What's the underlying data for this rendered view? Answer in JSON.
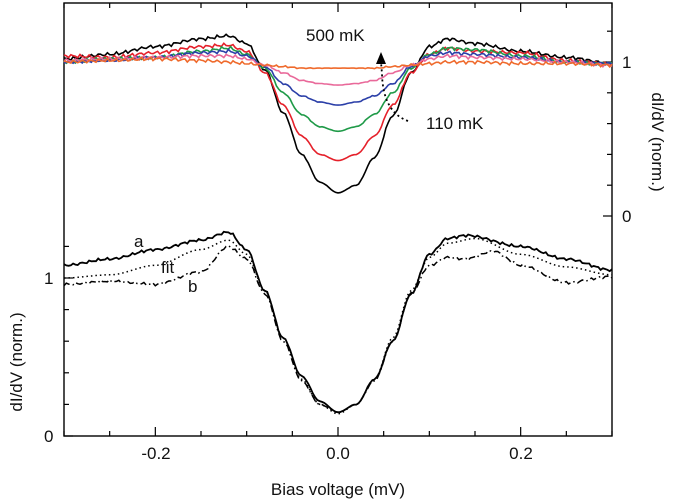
{
  "chart_data": [
    {
      "type": "line",
      "panel": "top",
      "ylabel": "dI/dV (norm.)",
      "y_axis_side": "right",
      "xlim": [
        -0.3,
        0.3
      ],
      "ylim": [
        -0.2,
        1.3
      ],
      "yticks": [
        0,
        1
      ],
      "annotations": [
        "500 mK",
        "110 mK"
      ],
      "series": [
        {
          "color": "#000000",
          "x": [
            -0.3,
            -0.25,
            -0.2,
            -0.15,
            -0.12,
            -0.1,
            -0.08,
            -0.06,
            -0.04,
            -0.02,
            0,
            0.02,
            0.04,
            0.06,
            0.08,
            0.1,
            0.12,
            0.15,
            0.2,
            0.25,
            0.3
          ],
          "y": [
            1.02,
            1.05,
            1.1,
            1.15,
            1.17,
            1.12,
            0.95,
            0.67,
            0.4,
            0.22,
            0.15,
            0.2,
            0.38,
            0.65,
            0.93,
            1.1,
            1.15,
            1.12,
            1.07,
            1.03,
            0.99
          ]
        },
        {
          "color": "#e5202a",
          "x": [
            -0.3,
            -0.25,
            -0.2,
            -0.15,
            -0.12,
            -0.1,
            -0.08,
            -0.06,
            -0.04,
            -0.02,
            0,
            0.02,
            0.04,
            0.06,
            0.08,
            0.1,
            0.12,
            0.15,
            0.2,
            0.25,
            0.3
          ],
          "y": [
            1.04,
            1.03,
            1.06,
            1.1,
            1.11,
            1.07,
            0.93,
            0.72,
            0.52,
            0.4,
            0.36,
            0.4,
            0.52,
            0.72,
            0.93,
            1.05,
            1.09,
            1.07,
            1.06,
            1.01,
            0.99
          ]
        },
        {
          "color": "#1f9a48",
          "x": [
            -0.3,
            -0.25,
            -0.2,
            -0.15,
            -0.12,
            -0.1,
            -0.08,
            -0.06,
            -0.04,
            -0.02,
            0,
            0.02,
            0.04,
            0.06,
            0.08,
            0.1,
            0.12,
            0.15,
            0.2,
            0.25,
            0.3
          ],
          "y": [
            1.0,
            1.02,
            1.03,
            1.07,
            1.09,
            1.05,
            0.96,
            0.8,
            0.66,
            0.58,
            0.55,
            0.58,
            0.66,
            0.8,
            0.96,
            1.05,
            1.09,
            1.08,
            1.04,
            1.0,
            0.99
          ]
        },
        {
          "color": "#2b3fa8",
          "x": [
            -0.3,
            -0.25,
            -0.2,
            -0.15,
            -0.12,
            -0.1,
            -0.08,
            -0.06,
            -0.04,
            -0.02,
            0,
            0.02,
            0.04,
            0.06,
            0.08,
            0.1,
            0.12,
            0.15,
            0.2,
            0.25,
            0.3
          ],
          "y": [
            1.0,
            1.01,
            1.03,
            1.06,
            1.07,
            1.04,
            0.97,
            0.86,
            0.78,
            0.74,
            0.72,
            0.74,
            0.78,
            0.86,
            0.97,
            1.04,
            1.06,
            1.05,
            1.03,
            1.0,
            0.99
          ]
        },
        {
          "color": "#e9699a",
          "x": [
            -0.3,
            -0.25,
            -0.2,
            -0.15,
            -0.12,
            -0.1,
            -0.08,
            -0.06,
            -0.04,
            -0.02,
            0,
            0.02,
            0.04,
            0.06,
            0.08,
            0.1,
            0.12,
            0.15,
            0.2,
            0.25,
            0.3
          ],
          "y": [
            1.01,
            1.02,
            1.03,
            1.04,
            1.04,
            1.02,
            0.98,
            0.93,
            0.88,
            0.86,
            0.85,
            0.86,
            0.88,
            0.93,
            0.98,
            1.02,
            1.04,
            1.03,
            1.02,
            1.0,
            0.98
          ]
        },
        {
          "color": "#ef6a2c",
          "x": [
            -0.3,
            -0.25,
            -0.2,
            -0.15,
            -0.12,
            -0.1,
            -0.08,
            -0.06,
            -0.04,
            -0.02,
            0,
            0.02,
            0.04,
            0.06,
            0.08,
            0.1,
            0.12,
            0.15,
            0.2,
            0.25,
            0.3
          ],
          "y": [
            1.0,
            1.01,
            1.02,
            1.01,
            1.0,
            0.99,
            0.98,
            0.97,
            0.96,
            0.96,
            0.96,
            0.96,
            0.96,
            0.97,
            0.98,
            0.99,
            1.0,
            1.0,
            0.99,
            0.99,
            0.98
          ]
        }
      ]
    },
    {
      "type": "line",
      "panel": "bottom",
      "xlabel": "Bias voltage (mV)",
      "ylabel": "dI/dV (norm.)",
      "y_axis_side": "left",
      "xlim": [
        -0.3,
        0.3
      ],
      "xticks": [
        -0.2,
        0.0,
        0.2
      ],
      "xtick_labels": [
        "-0.2",
        "0.0",
        "0.2"
      ],
      "ylim": [
        0,
        1.3
      ],
      "yticks": [
        0,
        1
      ],
      "annotations": [
        "a",
        "fit",
        "b"
      ],
      "series": [
        {
          "name": "a",
          "color": "#000000",
          "dash": "solid",
          "x": [
            -0.3,
            -0.25,
            -0.2,
            -0.15,
            -0.12,
            -0.1,
            -0.08,
            -0.06,
            -0.04,
            -0.02,
            0,
            0.02,
            0.04,
            0.06,
            0.08,
            0.1,
            0.12,
            0.14,
            0.2,
            0.25,
            0.3
          ],
          "y": [
            1.08,
            1.12,
            1.18,
            1.24,
            1.29,
            1.18,
            0.92,
            0.62,
            0.38,
            0.22,
            0.15,
            0.2,
            0.36,
            0.6,
            0.9,
            1.15,
            1.25,
            1.27,
            1.2,
            1.12,
            1.05
          ]
        },
        {
          "name": "fit",
          "color": "#000000",
          "dash": "dot",
          "x": [
            -0.3,
            -0.25,
            -0.2,
            -0.15,
            -0.12,
            -0.1,
            -0.08,
            -0.06,
            -0.04,
            -0.02,
            0,
            0.02,
            0.04,
            0.06,
            0.08,
            0.1,
            0.12,
            0.15,
            0.2,
            0.25,
            0.3
          ],
          "y": [
            1.0,
            1.02,
            1.08,
            1.18,
            1.24,
            1.15,
            0.92,
            0.62,
            0.36,
            0.2,
            0.14,
            0.2,
            0.36,
            0.62,
            0.92,
            1.13,
            1.22,
            1.25,
            1.15,
            1.07,
            1.02
          ]
        },
        {
          "name": "b",
          "color": "#000000",
          "dash": "dashdot",
          "x": [
            -0.3,
            -0.25,
            -0.2,
            -0.15,
            -0.12,
            -0.1,
            -0.08,
            -0.06,
            -0.04,
            -0.02,
            0,
            0.02,
            0.04,
            0.06,
            0.08,
            0.1,
            0.12,
            0.14,
            0.17,
            0.2,
            0.25,
            0.3
          ],
          "y": [
            0.96,
            0.98,
            0.96,
            1.04,
            1.2,
            1.12,
            0.9,
            0.6,
            0.35,
            0.2,
            0.15,
            0.2,
            0.35,
            0.6,
            0.9,
            1.08,
            1.13,
            1.12,
            1.17,
            1.08,
            0.97,
            1.01
          ]
        }
      ]
    }
  ]
}
